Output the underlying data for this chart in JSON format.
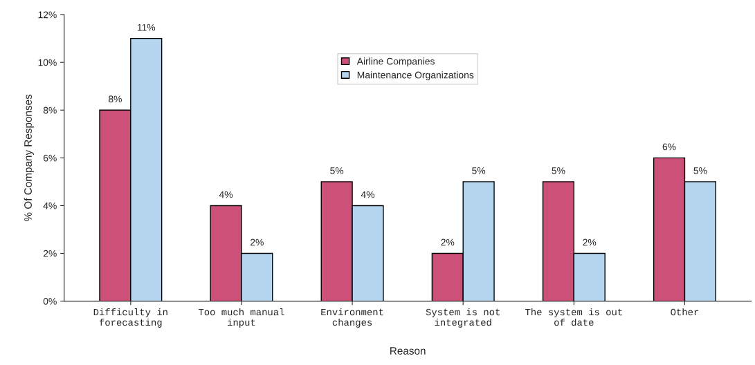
{
  "chart_data": {
    "type": "bar",
    "xlabel": "Reason",
    "ylabel": "% Of Company Responses",
    "categories": [
      "Difficulty in\nforecasting",
      "Too much manual\ninput",
      "Environment\nchanges",
      "System is not\nintegrated",
      "The system is out\nof date",
      "Other"
    ],
    "series": [
      {
        "name": "Airline Companies",
        "color": "#cc5078",
        "values": [
          8,
          4,
          5,
          2,
          5,
          6
        ],
        "value_labels": [
          "8%",
          "4%",
          "5%",
          "2%",
          "5%",
          "6%"
        ]
      },
      {
        "name": "Maintenance Organizations",
        "color": "#b6d6f0",
        "values": [
          11,
          2,
          4,
          5,
          2,
          5
        ],
        "value_labels": [
          "11%",
          "2%",
          "4%",
          "5%",
          "2%",
          "5%"
        ]
      }
    ],
    "ylim": [
      0,
      12
    ],
    "yticks": [
      {
        "value": 0,
        "label": "0%"
      },
      {
        "value": 2,
        "label": "2%"
      },
      {
        "value": 4,
        "label": "4%"
      },
      {
        "value": 6,
        "label": "6%"
      },
      {
        "value": 8,
        "label": "8%"
      },
      {
        "value": 10,
        "label": "10%"
      },
      {
        "value": 12,
        "label": "12%"
      }
    ],
    "grid": false,
    "legend": "top"
  }
}
